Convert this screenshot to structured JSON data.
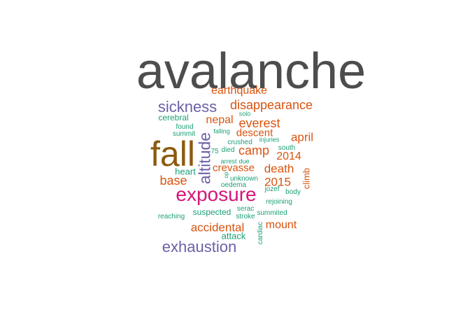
{
  "colors": {
    "gray": "#4d4d4d",
    "brown": "#8c5a0e",
    "magenta": "#d6157a",
    "purple": "#6c5fa7",
    "orange": "#d9540f",
    "green": "#1b9e77"
  },
  "words": [
    {
      "text": "avalanche",
      "color": "gray"
    },
    {
      "text": "fall",
      "color": "brown"
    },
    {
      "text": "exposure",
      "color": "magenta"
    },
    {
      "text": "altitude",
      "color": "purple"
    },
    {
      "text": "sickness",
      "color": "purple"
    },
    {
      "text": "exhaustion",
      "color": "purple"
    },
    {
      "text": "earthquake",
      "color": "orange"
    },
    {
      "text": "disappearance",
      "color": "orange"
    },
    {
      "text": "nepal",
      "color": "orange"
    },
    {
      "text": "everest",
      "color": "orange"
    },
    {
      "text": "descent",
      "color": "orange"
    },
    {
      "text": "april",
      "color": "orange"
    },
    {
      "text": "camp",
      "color": "orange"
    },
    {
      "text": "2014",
      "color": "orange"
    },
    {
      "text": "crevasse",
      "color": "orange"
    },
    {
      "text": "death",
      "color": "orange"
    },
    {
      "text": "base",
      "color": "orange"
    },
    {
      "text": "2015",
      "color": "orange"
    },
    {
      "text": "climb",
      "color": "orange"
    },
    {
      "text": "accidental",
      "color": "orange"
    },
    {
      "text": "mount",
      "color": "orange"
    },
    {
      "text": "solo",
      "color": "green"
    },
    {
      "text": "cerebral",
      "color": "green"
    },
    {
      "text": "found",
      "color": "green"
    },
    {
      "text": "summit",
      "color": "green"
    },
    {
      "text": "falling",
      "color": "green"
    },
    {
      "text": "crushed",
      "color": "green"
    },
    {
      "text": "injuries",
      "color": "green"
    },
    {
      "text": "south",
      "color": "green"
    },
    {
      "text": "75",
      "color": "green"
    },
    {
      "text": "died",
      "color": "green"
    },
    {
      "text": "arrest",
      "color": "green"
    },
    {
      "text": "due",
      "color": "green"
    },
    {
      "text": "heart",
      "color": "green"
    },
    {
      "text": "unknown",
      "color": "green"
    },
    {
      "text": "oedema",
      "color": "green"
    },
    {
      "text": "jozef",
      "color": "green"
    },
    {
      "text": "body",
      "color": "green"
    },
    {
      "text": "rejoining",
      "color": "green"
    },
    {
      "text": "suspected",
      "color": "green"
    },
    {
      "text": "serac",
      "color": "green"
    },
    {
      "text": "stroke",
      "color": "green"
    },
    {
      "text": "summited",
      "color": "green"
    },
    {
      "text": "reaching",
      "color": "green"
    },
    {
      "text": "attack",
      "color": "green"
    },
    {
      "text": "cardiac",
      "color": "green"
    },
    {
      "text": "op",
      "color": "green"
    }
  ]
}
